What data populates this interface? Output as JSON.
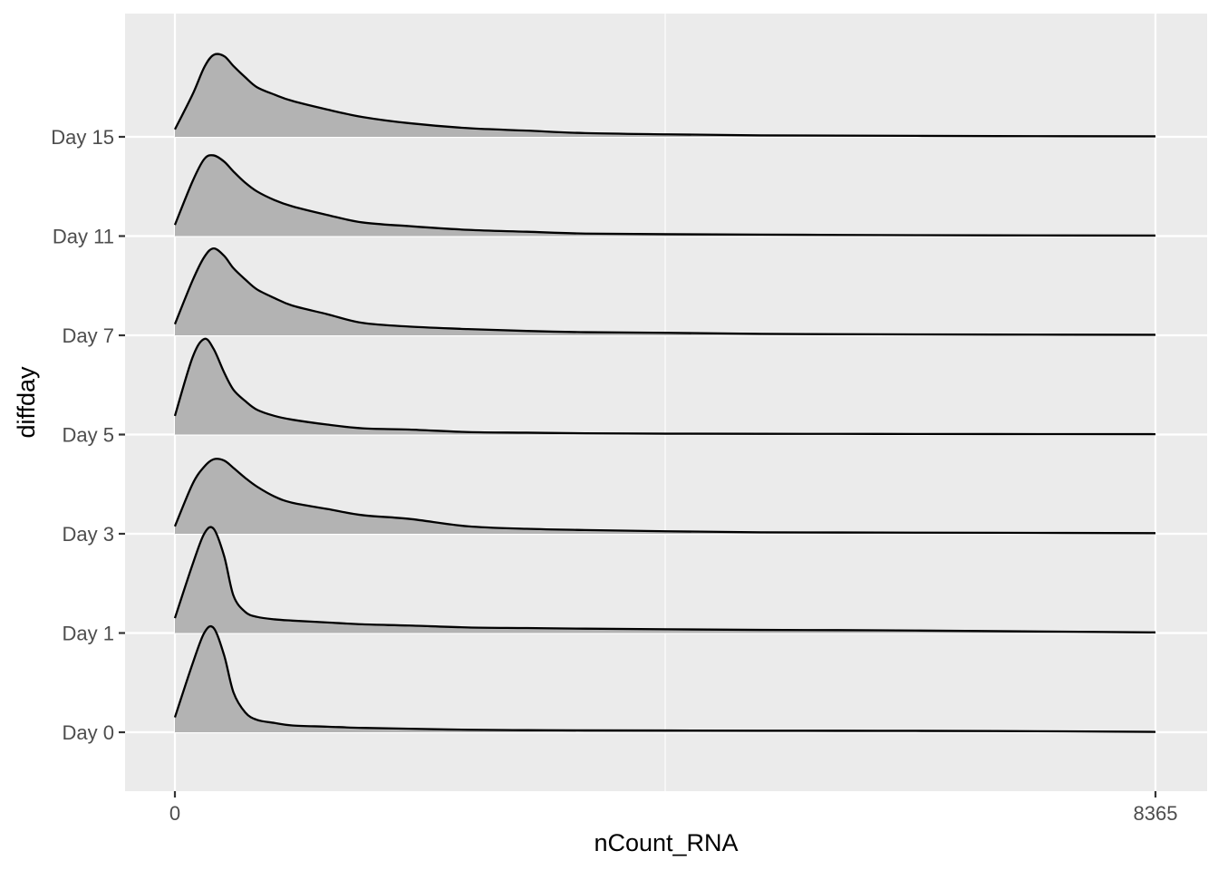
{
  "chart_data": {
    "type": "ridgeline",
    "title": "",
    "xlabel": "nCount_RNA",
    "ylabel": "diffday",
    "xlim": [
      0,
      8365
    ],
    "x_ticks": [
      0,
      8365
    ],
    "x_tick_labels": [
      "0",
      "8365"
    ],
    "x_minor_gridline": 4182.5,
    "categories": [
      "Day 0",
      "Day 1",
      "Day 3",
      "Day 5",
      "Day 7",
      "Day 11",
      "Day 15"
    ],
    "density_scale": "relative (tallest ridge = 1.0, spans ~1.25 category rows)",
    "x": [
      0,
      150,
      250,
      330,
      420,
      500,
      600,
      700,
      850,
      1000,
      1300,
      1600,
      2000,
      2500,
      3000,
      3500,
      4200,
      5000,
      6000,
      7000,
      8365
    ],
    "series": [
      {
        "name": "Day 0",
        "values": [
          0.12,
          0.55,
          0.8,
          0.84,
          0.62,
          0.32,
          0.16,
          0.1,
          0.075,
          0.055,
          0.045,
          0.035,
          0.028,
          0.02,
          0.017,
          0.015,
          0.014,
          0.013,
          0.012,
          0.01,
          0.003
        ]
      },
      {
        "name": "Day 1",
        "values": [
          0.12,
          0.55,
          0.8,
          0.84,
          0.62,
          0.3,
          0.17,
          0.13,
          0.11,
          0.1,
          0.085,
          0.07,
          0.06,
          0.045,
          0.04,
          0.035,
          0.03,
          0.025,
          0.022,
          0.015,
          0.005
        ]
      },
      {
        "name": "Day 3",
        "values": [
          0.06,
          0.4,
          0.54,
          0.6,
          0.59,
          0.53,
          0.45,
          0.38,
          0.3,
          0.25,
          0.2,
          0.15,
          0.12,
          0.06,
          0.04,
          0.03,
          0.02,
          0.012,
          0.01,
          0.008,
          0.005
        ]
      },
      {
        "name": "Day 5",
        "values": [
          0.15,
          0.62,
          0.77,
          0.69,
          0.5,
          0.36,
          0.27,
          0.2,
          0.15,
          0.12,
          0.08,
          0.05,
          0.04,
          0.02,
          0.015,
          0.01,
          0.007,
          0.006,
          0.005,
          0.004,
          0.003
        ]
      },
      {
        "name": "Day 7",
        "values": [
          0.09,
          0.44,
          0.63,
          0.7,
          0.64,
          0.54,
          0.45,
          0.37,
          0.3,
          0.24,
          0.17,
          0.1,
          0.07,
          0.05,
          0.035,
          0.025,
          0.02,
          0.012,
          0.008,
          0.006,
          0.004
        ]
      },
      {
        "name": "Day 11",
        "values": [
          0.09,
          0.44,
          0.62,
          0.65,
          0.6,
          0.52,
          0.43,
          0.36,
          0.29,
          0.24,
          0.17,
          0.11,
          0.08,
          0.05,
          0.035,
          0.02,
          0.015,
          0.012,
          0.008,
          0.006,
          0.004
        ]
      },
      {
        "name": "Day 15",
        "values": [
          0.06,
          0.34,
          0.56,
          0.66,
          0.65,
          0.57,
          0.48,
          0.4,
          0.34,
          0.29,
          0.22,
          0.16,
          0.11,
          0.07,
          0.05,
          0.03,
          0.02,
          0.012,
          0.009,
          0.006,
          0.004
        ]
      }
    ],
    "fill_color": "#b3b3b3",
    "line_color": "#000000",
    "panel_background": "#ebebeb",
    "grid_color": "#ffffff",
    "grid": true,
    "legend": "none"
  }
}
